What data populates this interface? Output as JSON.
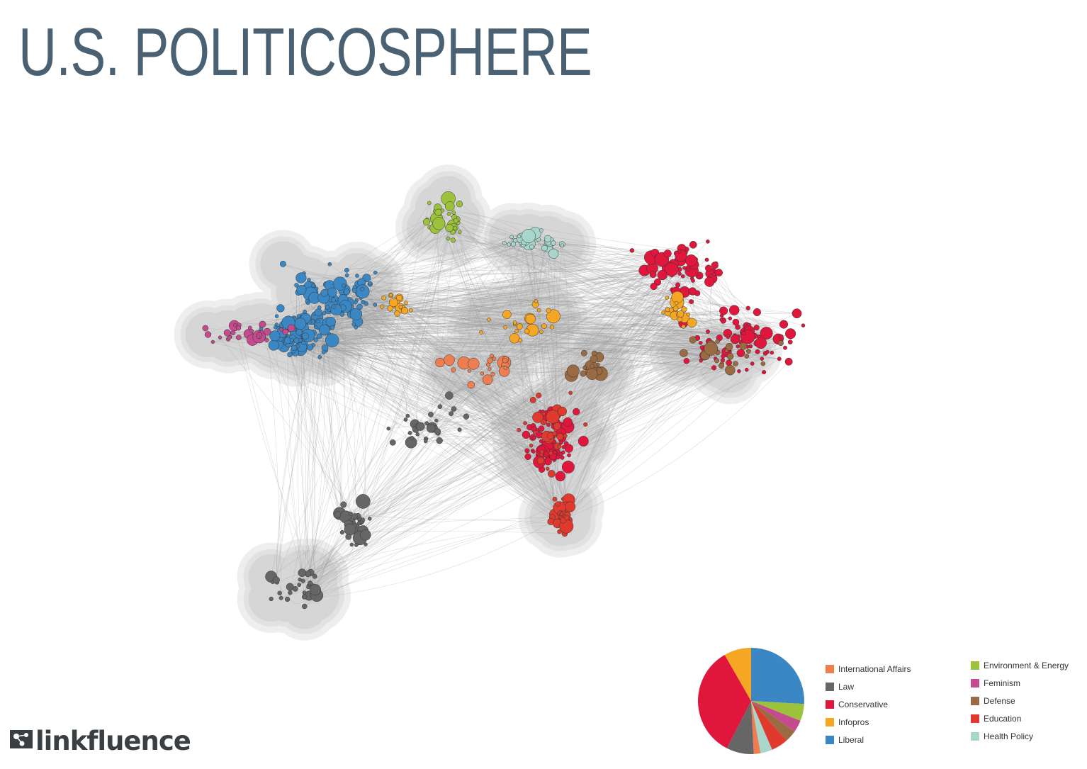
{
  "title": "U.S. POLITICOSPHERE",
  "brand": {
    "name": "linkfluence"
  },
  "colors": {
    "International Affairs": "#ee7d50",
    "Law": "#666666",
    "Conservative": "#e0163c",
    "Infopros": "#f5a623",
    "Liberal": "#3a87c4",
    "Environment & Energy": "#9cc23b",
    "Feminism": "#c54b8e",
    "Defense": "#9a6b43",
    "Education": "#e03a2e",
    "Health Policy": "#a8d5cc"
  },
  "legend": {
    "column1": [
      "International Affairs",
      "Law",
      "Conservative",
      "Infopros",
      "Liberal"
    ],
    "column2": [
      "Environment & Energy",
      "Feminism",
      "Defense",
      "Education",
      "Health Policy"
    ]
  },
  "pie": {
    "slices": [
      {
        "category": "Liberal",
        "value": 25
      },
      {
        "category": "Environment & Energy",
        "value": 5
      },
      {
        "category": "Feminism",
        "value": 3.5
      },
      {
        "category": "Defense",
        "value": 3.5
      },
      {
        "category": "Education",
        "value": 5
      },
      {
        "category": "Health Policy",
        "value": 3.5
      },
      {
        "category": "International Affairs",
        "value": 2
      },
      {
        "category": "Law",
        "value": 8
      },
      {
        "category": "Conservative",
        "value": 33
      },
      {
        "category": "Infopros",
        "value": 8
      }
    ]
  },
  "clusters": [
    {
      "category": "Liberal",
      "count": 190
    },
    {
      "category": "Conservative",
      "count": 230
    },
    {
      "category": "Infopros",
      "count": 65
    },
    {
      "category": "Law",
      "count": 90
    },
    {
      "category": "Environment & Energy",
      "count": 32
    },
    {
      "category": "Health Policy",
      "count": 30
    },
    {
      "category": "Feminism",
      "count": 30
    },
    {
      "category": "Defense",
      "count": 40
    },
    {
      "category": "Education",
      "count": 70
    },
    {
      "category": "International Affairs",
      "count": 22
    }
  ],
  "edge_count": 1100
}
